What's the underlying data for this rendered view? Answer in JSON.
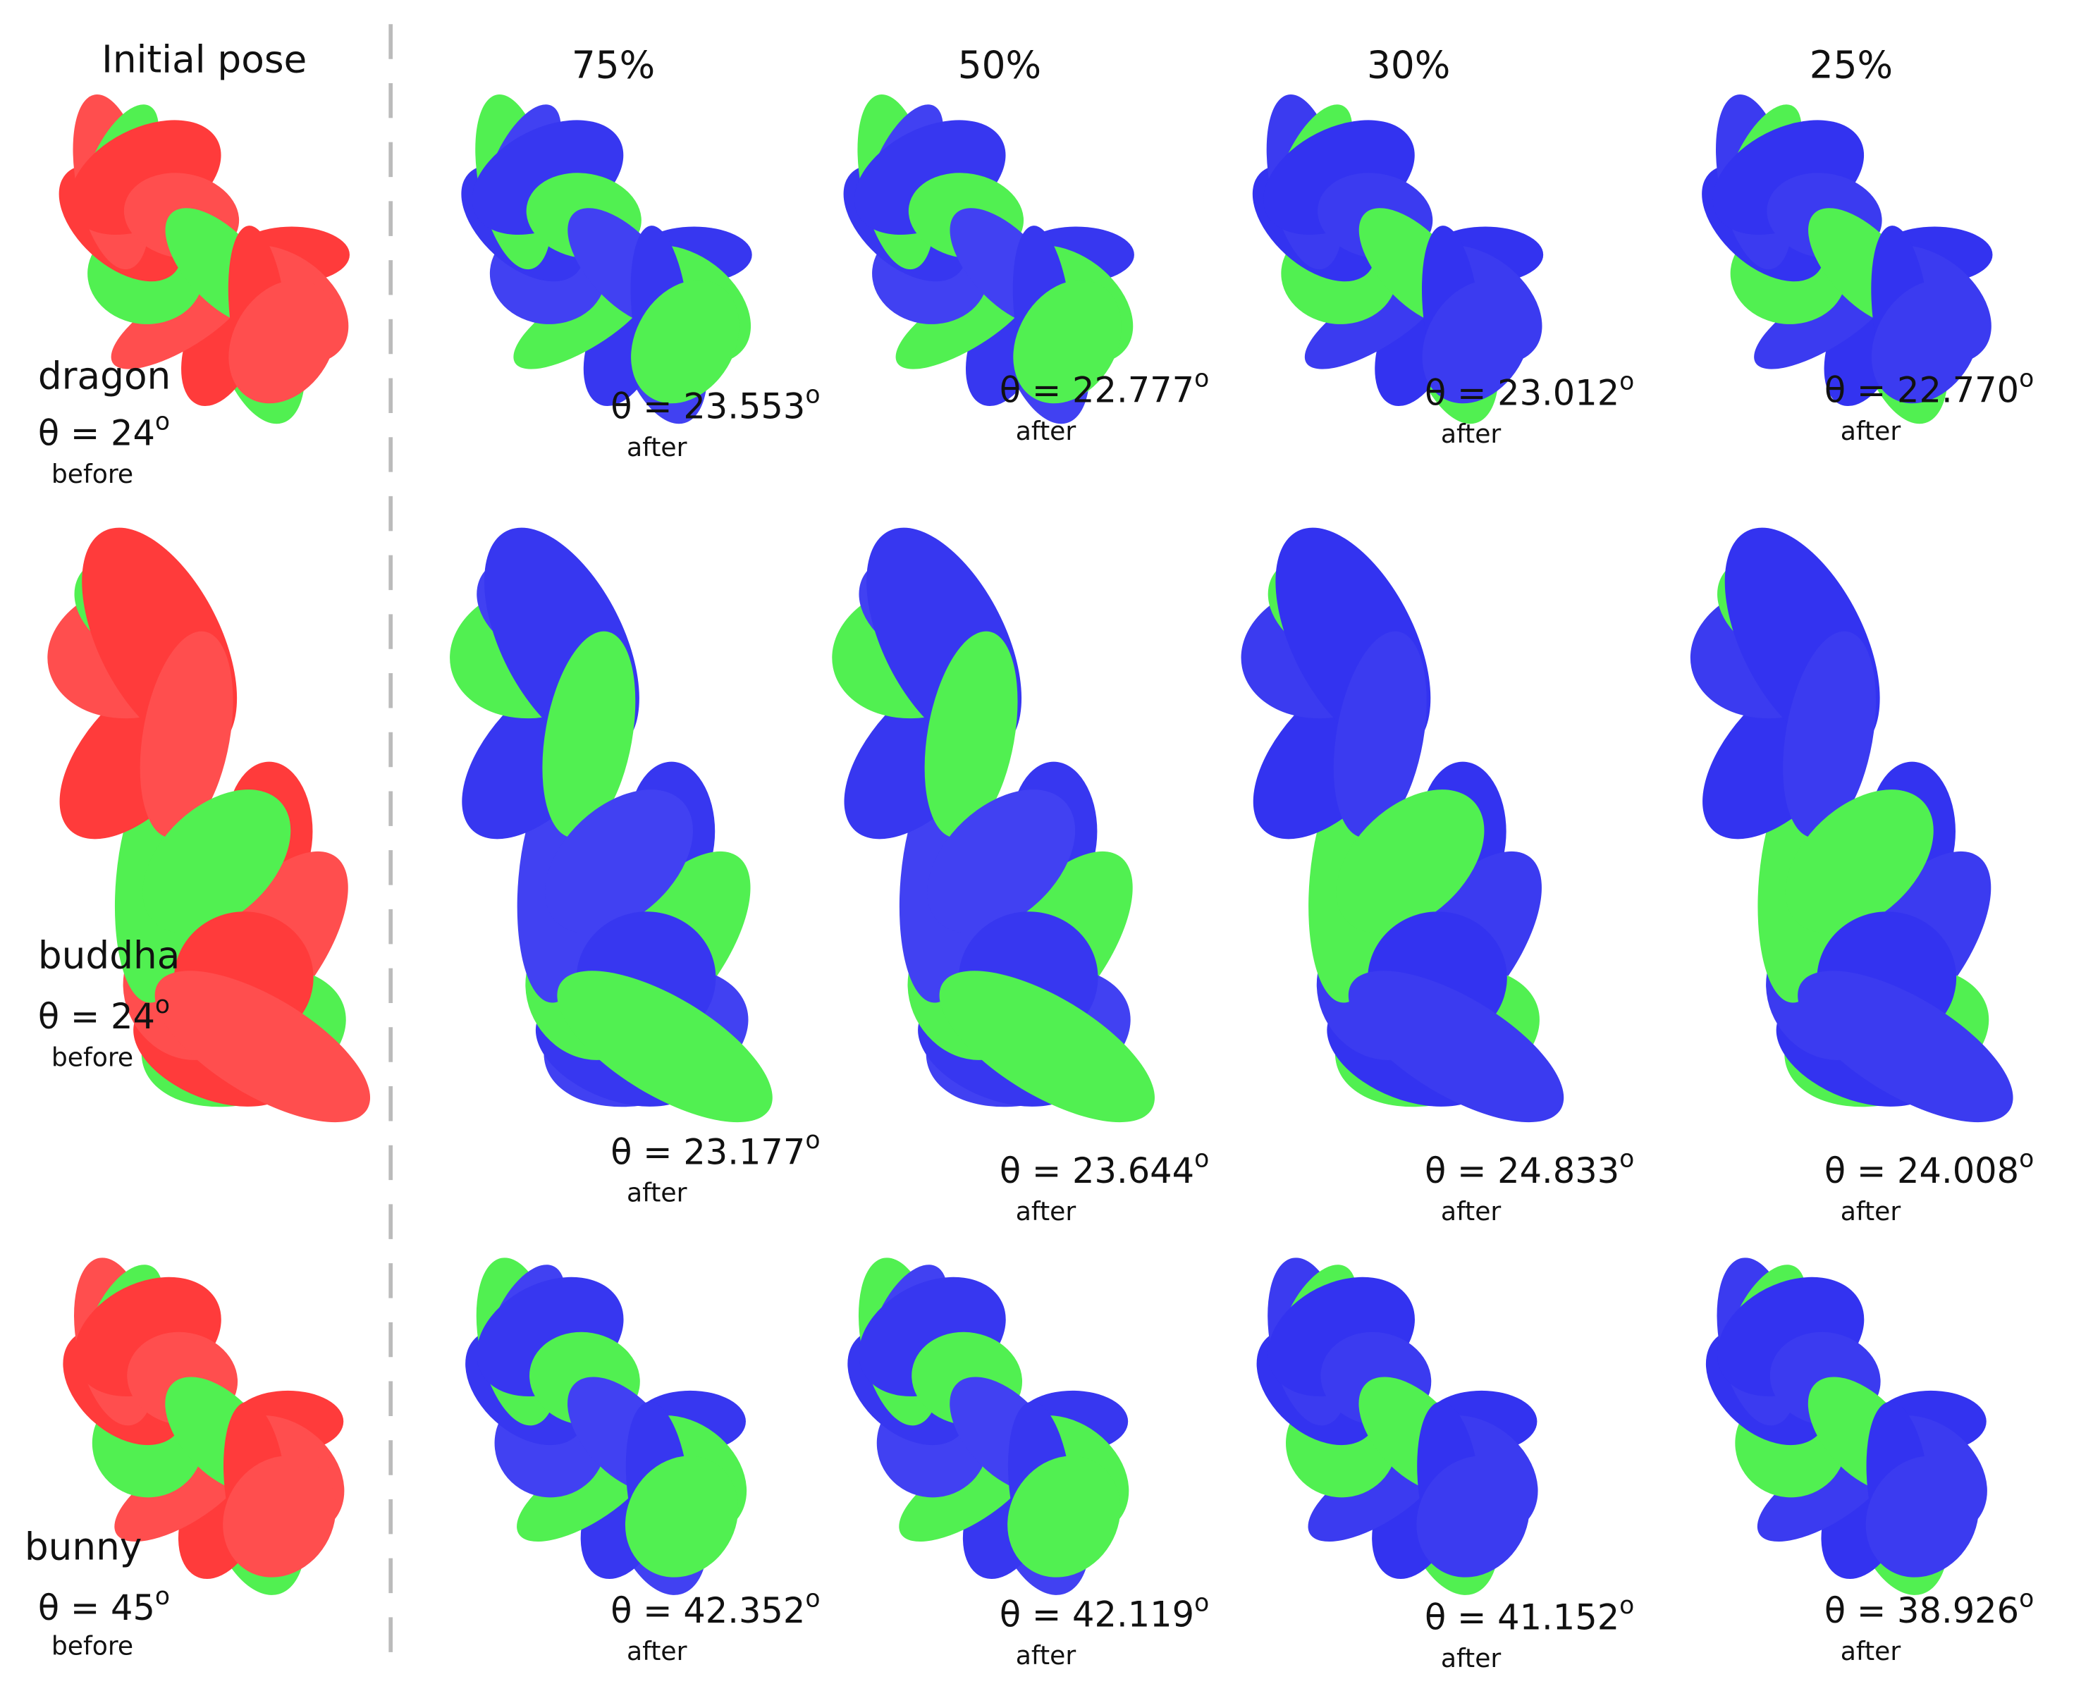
{
  "header": {
    "title": "Initial pose",
    "columns": [
      "75%",
      "50%",
      "30%",
      "25%"
    ]
  },
  "rows": [
    {
      "name": "dragon",
      "before": {
        "text": "θ = 24",
        "sup": "o",
        "label": "before"
      },
      "after": [
        {
          "text": "θ = 23.553",
          "sup": "o",
          "label": "after"
        },
        {
          "text": "θ = 22.777",
          "sup": "o",
          "label": "after"
        },
        {
          "text": "θ = 23.012",
          "sup": "o",
          "label": "after"
        },
        {
          "text": "θ = 22.770",
          "sup": "o",
          "label": "after"
        }
      ]
    },
    {
      "name": "buddha",
      "before": {
        "text": "θ = 24",
        "sup": "o",
        "label": "before"
      },
      "after": [
        {
          "text": "θ = 23.177",
          "sup": "o",
          "label": "after"
        },
        {
          "text": "θ = 23.644",
          "sup": "o",
          "label": "after"
        },
        {
          "text": "θ = 24.833",
          "sup": "o",
          "label": "after"
        },
        {
          "text": "θ = 24.008",
          "sup": "o",
          "label": "after"
        }
      ]
    },
    {
      "name": "bunny",
      "before": {
        "text": "θ = 45",
        "sup": "o",
        "label": "before"
      },
      "after": [
        {
          "text": "θ = 42.352",
          "sup": "o",
          "label": "after"
        },
        {
          "text": "θ = 42.119",
          "sup": "o",
          "label": "after"
        },
        {
          "text": "θ = 41.152",
          "sup": "o",
          "label": "after"
        },
        {
          "text": "θ = 38.926",
          "sup": "o",
          "label": "after"
        }
      ]
    }
  ]
}
